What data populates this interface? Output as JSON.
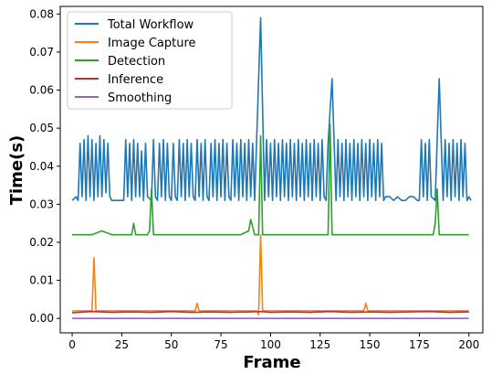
{
  "chart_data": {
    "type": "line",
    "title": "",
    "xlabel": "Frame",
    "ylabel": "Time(s)",
    "xlim": [
      -6,
      207
    ],
    "ylim": [
      -0.0038,
      0.082
    ],
    "xticks": [
      0,
      25,
      50,
      75,
      100,
      125,
      150,
      175,
      200
    ],
    "yticks": [
      0.0,
      0.01,
      0.02,
      0.03,
      0.04,
      0.05,
      0.06,
      0.07,
      0.08
    ],
    "ytick_labels": [
      "0.00",
      "0.01",
      "0.02",
      "0.03",
      "0.04",
      "0.05",
      "0.06",
      "0.07",
      "0.08"
    ],
    "grid": false,
    "legend_position": "top-left",
    "series": [
      {
        "name": "Total Workflow",
        "color": "#1f77b4",
        "x": [
          0,
          2,
          3,
          4,
          5,
          6,
          7,
          8,
          9,
          10,
          11,
          12,
          13,
          14,
          15,
          16,
          17,
          18,
          19,
          20,
          22,
          24,
          26,
          27,
          28,
          29,
          30,
          31,
          32,
          33,
          34,
          35,
          36,
          37,
          38,
          40,
          41,
          42,
          43,
          44,
          45,
          46,
          47,
          48,
          49,
          50,
          51,
          52,
          53,
          54,
          55,
          56,
          57,
          58,
          59,
          60,
          61,
          62,
          63,
          64,
          65,
          66,
          67,
          68,
          69,
          70,
          71,
          72,
          73,
          74,
          75,
          76,
          77,
          78,
          79,
          80,
          81,
          82,
          83,
          84,
          85,
          86,
          87,
          88,
          89,
          90,
          91,
          92,
          93,
          95,
          97,
          98,
          99,
          100,
          101,
          102,
          103,
          104,
          105,
          106,
          107,
          108,
          109,
          110,
          111,
          112,
          113,
          114,
          115,
          116,
          117,
          118,
          119,
          120,
          121,
          122,
          123,
          124,
          125,
          126,
          127,
          128,
          129,
          131,
          133,
          134,
          135,
          136,
          137,
          138,
          139,
          140,
          141,
          142,
          143,
          144,
          145,
          146,
          147,
          148,
          149,
          150,
          151,
          152,
          153,
          154,
          155,
          156,
          157,
          158,
          160,
          162,
          164,
          166,
          168,
          170,
          172,
          174,
          175,
          176,
          177,
          178,
          179,
          180,
          181,
          183,
          185,
          187,
          188,
          189,
          190,
          191,
          192,
          193,
          194,
          195,
          196,
          197,
          198,
          199,
          200,
          201
        ],
        "values": [
          0.031,
          0.032,
          0.031,
          0.046,
          0.032,
          0.047,
          0.031,
          0.048,
          0.032,
          0.047,
          0.031,
          0.046,
          0.032,
          0.048,
          0.032,
          0.047,
          0.033,
          0.046,
          0.032,
          0.031,
          0.031,
          0.031,
          0.031,
          0.047,
          0.032,
          0.046,
          0.031,
          0.047,
          0.032,
          0.046,
          0.032,
          0.044,
          0.031,
          0.046,
          0.032,
          0.031,
          0.047,
          0.032,
          0.031,
          0.046,
          0.032,
          0.047,
          0.031,
          0.046,
          0.032,
          0.031,
          0.046,
          0.032,
          0.031,
          0.047,
          0.032,
          0.046,
          0.031,
          0.047,
          0.032,
          0.046,
          0.032,
          0.031,
          0.047,
          0.032,
          0.046,
          0.031,
          0.047,
          0.032,
          0.031,
          0.046,
          0.032,
          0.047,
          0.031,
          0.046,
          0.032,
          0.047,
          0.031,
          0.046,
          0.032,
          0.031,
          0.047,
          0.032,
          0.046,
          0.031,
          0.047,
          0.032,
          0.046,
          0.031,
          0.047,
          0.032,
          0.046,
          0.031,
          0.047,
          0.079,
          0.031,
          0.047,
          0.032,
          0.046,
          0.031,
          0.047,
          0.032,
          0.046,
          0.031,
          0.047,
          0.032,
          0.046,
          0.031,
          0.047,
          0.032,
          0.046,
          0.031,
          0.047,
          0.032,
          0.046,
          0.031,
          0.047,
          0.032,
          0.046,
          0.031,
          0.047,
          0.032,
          0.046,
          0.031,
          0.047,
          0.032,
          0.031,
          0.046,
          0.063,
          0.031,
          0.047,
          0.032,
          0.046,
          0.031,
          0.047,
          0.032,
          0.046,
          0.031,
          0.047,
          0.032,
          0.046,
          0.031,
          0.047,
          0.032,
          0.046,
          0.031,
          0.047,
          0.032,
          0.046,
          0.031,
          0.047,
          0.032,
          0.046,
          0.031,
          0.032,
          0.032,
          0.031,
          0.032,
          0.031,
          0.031,
          0.032,
          0.032,
          0.031,
          0.031,
          0.047,
          0.032,
          0.046,
          0.031,
          0.047,
          0.032,
          0.031,
          0.063,
          0.031,
          0.047,
          0.032,
          0.046,
          0.031,
          0.047,
          0.032,
          0.046,
          0.031,
          0.047,
          0.032,
          0.046,
          0.031,
          0.032,
          0.031
        ]
      },
      {
        "name": "Image Capture",
        "color": "#ff7f0e",
        "x": [
          0,
          5,
          9,
          10,
          11,
          12,
          14,
          20,
          30,
          40,
          50,
          60,
          62,
          63,
          64,
          70,
          80,
          90,
          93,
          94,
          95,
          96,
          98,
          105,
          115,
          125,
          135,
          145,
          147,
          148,
          149,
          155,
          165,
          175,
          185,
          195,
          200
        ],
        "values": [
          0.002,
          0.002,
          0.002,
          0.002,
          0.016,
          0.002,
          0.002,
          0.002,
          0.002,
          0.002,
          0.002,
          0.002,
          0.002,
          0.004,
          0.002,
          0.002,
          0.002,
          0.002,
          0.002,
          0.001,
          0.022,
          0.002,
          0.002,
          0.002,
          0.002,
          0.002,
          0.002,
          0.002,
          0.002,
          0.004,
          0.002,
          0.002,
          0.002,
          0.002,
          0.002,
          0.002,
          0.002
        ]
      },
      {
        "name": "Detection",
        "color": "#2ca02c",
        "x": [
          0,
          5,
          10,
          15,
          20,
          25,
          30,
          31,
          32,
          35,
          38,
          39,
          40,
          41,
          45,
          50,
          55,
          60,
          65,
          70,
          75,
          80,
          85,
          89,
          90,
          91,
          92,
          93,
          94,
          95,
          96,
          97,
          100,
          105,
          110,
          115,
          120,
          125,
          128,
          129,
          130,
          131,
          132,
          135,
          140,
          145,
          150,
          155,
          160,
          165,
          170,
          175,
          180,
          182,
          183,
          184,
          185,
          186,
          187,
          190,
          195,
          200
        ],
        "values": [
          0.022,
          0.022,
          0.022,
          0.023,
          0.022,
          0.022,
          0.022,
          0.025,
          0.022,
          0.022,
          0.022,
          0.023,
          0.034,
          0.022,
          0.022,
          0.022,
          0.022,
          0.022,
          0.022,
          0.022,
          0.022,
          0.022,
          0.022,
          0.023,
          0.026,
          0.024,
          0.022,
          0.022,
          0.022,
          0.048,
          0.022,
          0.022,
          0.022,
          0.022,
          0.022,
          0.022,
          0.022,
          0.022,
          0.022,
          0.022,
          0.051,
          0.022,
          0.022,
          0.022,
          0.022,
          0.022,
          0.022,
          0.022,
          0.022,
          0.022,
          0.022,
          0.022,
          0.022,
          0.022,
          0.025,
          0.034,
          0.022,
          0.022,
          0.022,
          0.022,
          0.022,
          0.022
        ]
      },
      {
        "name": "Inference",
        "color": "#d62728",
        "x": [
          0,
          10,
          20,
          30,
          40,
          50,
          60,
          70,
          80,
          90,
          95,
          100,
          110,
          120,
          130,
          140,
          150,
          160,
          170,
          180,
          190,
          200
        ],
        "values": [
          0.0015,
          0.0018,
          0.0016,
          0.0017,
          0.0016,
          0.0018,
          0.0016,
          0.0017,
          0.0016,
          0.0017,
          0.0018,
          0.0016,
          0.0017,
          0.0016,
          0.0018,
          0.0016,
          0.0017,
          0.0016,
          0.0017,
          0.0018,
          0.0016,
          0.0017
        ]
      },
      {
        "name": "Smoothing",
        "color": "#9467bd",
        "x": [
          0,
          20,
          40,
          60,
          80,
          100,
          120,
          140,
          160,
          180,
          200
        ],
        "values": [
          0.0,
          0.0,
          0.0,
          0.0,
          0.0,
          0.0,
          0.0,
          0.0,
          0.0,
          0.0,
          0.0
        ]
      }
    ]
  }
}
